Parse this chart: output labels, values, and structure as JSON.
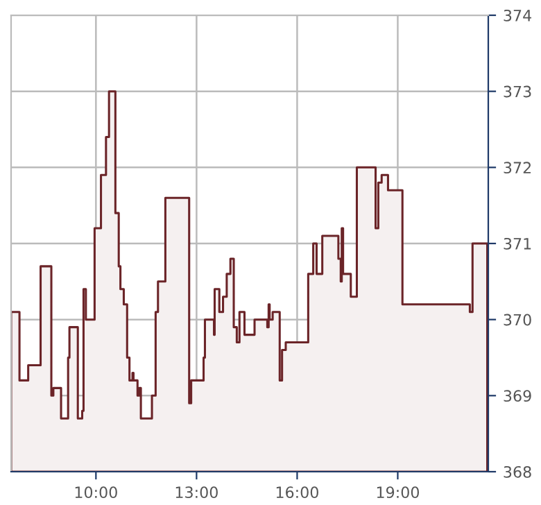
{
  "chart_data": {
    "type": "area",
    "xlim": [
      7.47,
      21.7
    ],
    "xticks": [
      {
        "value": 10,
        "label": "10:00"
      },
      {
        "value": 13,
        "label": "13:00"
      },
      {
        "value": 16,
        "label": "16:00"
      },
      {
        "value": 19,
        "label": "19:00"
      }
    ],
    "ylim": [
      368,
      374
    ],
    "yticks": [
      368,
      369,
      370,
      371,
      372,
      373,
      374
    ],
    "grid": true,
    "legend": false,
    "line_style": "solid",
    "series": [
      {
        "color": "#6b2428",
        "x": [
          7.47,
          7.72,
          7.72,
          7.98,
          7.98,
          8.35,
          8.35,
          8.67,
          8.67,
          8.73,
          8.73,
          8.96,
          8.96,
          9.17,
          9.17,
          9.21,
          9.21,
          9.46,
          9.46,
          9.59,
          9.59,
          9.63,
          9.63,
          9.7,
          9.7,
          9.96,
          9.96,
          10.15,
          10.15,
          10.3,
          10.3,
          10.39,
          10.39,
          10.58,
          10.58,
          10.68,
          10.68,
          10.73,
          10.73,
          10.83,
          10.83,
          10.93,
          10.93,
          11.0,
          11.0,
          11.09,
          11.09,
          11.12,
          11.12,
          11.24,
          11.24,
          11.29,
          11.29,
          11.34,
          11.34,
          11.67,
          11.67,
          11.78,
          11.78,
          11.85,
          11.85,
          12.07,
          12.07,
          12.78,
          12.78,
          12.84,
          12.84,
          13.21,
          13.21,
          13.25,
          13.25,
          13.52,
          13.52,
          13.54,
          13.54,
          13.68,
          13.68,
          13.79,
          13.79,
          13.9,
          13.9,
          14.01,
          14.01,
          14.11,
          14.11,
          14.2,
          14.2,
          14.28,
          14.28,
          14.43,
          14.43,
          14.73,
          14.73,
          15.11,
          15.11,
          15.15,
          15.15,
          15.18,
          15.18,
          15.27,
          15.27,
          15.48,
          15.48,
          15.55,
          15.55,
          15.66,
          15.66,
          16.33,
          16.33,
          16.48,
          16.48,
          16.58,
          16.58,
          16.75,
          16.75,
          17.23,
          17.23,
          17.3,
          17.3,
          17.33,
          17.33,
          17.37,
          17.37,
          17.6,
          17.6,
          17.78,
          17.78,
          18.34,
          18.34,
          18.42,
          18.42,
          18.52,
          18.52,
          18.71,
          18.71,
          19.14,
          19.14,
          21.15,
          21.15,
          21.23,
          21.23,
          21.67
        ],
        "values": [
          370.1,
          370.1,
          369.2,
          369.2,
          369.4,
          369.4,
          370.7,
          370.7,
          369.0,
          369.0,
          369.1,
          369.1,
          368.7,
          368.7,
          369.5,
          369.5,
          369.9,
          369.9,
          368.7,
          368.7,
          368.8,
          368.8,
          370.4,
          370.4,
          370.0,
          370.0,
          371.2,
          371.2,
          371.9,
          371.9,
          372.4,
          372.4,
          373.0,
          373.0,
          371.4,
          371.4,
          370.7,
          370.7,
          370.4,
          370.4,
          370.2,
          370.2,
          369.5,
          369.5,
          369.2,
          369.2,
          369.3,
          369.3,
          369.2,
          369.2,
          369.0,
          369.0,
          369.1,
          369.1,
          368.7,
          368.7,
          369.0,
          369.0,
          370.1,
          370.1,
          370.5,
          370.5,
          371.6,
          371.6,
          368.9,
          368.9,
          369.2,
          369.2,
          369.5,
          369.5,
          370.0,
          370.0,
          369.8,
          369.8,
          370.4,
          370.4,
          370.1,
          370.1,
          370.3,
          370.3,
          370.6,
          370.6,
          370.8,
          370.8,
          369.9,
          369.9,
          369.7,
          369.7,
          370.1,
          370.1,
          369.8,
          369.8,
          370.0,
          370.0,
          369.9,
          369.9,
          370.2,
          370.2,
          370.0,
          370.0,
          370.1,
          370.1,
          369.2,
          369.2,
          369.6,
          369.6,
          369.7,
          369.7,
          370.6,
          370.6,
          371.0,
          371.0,
          370.6,
          370.6,
          371.1,
          371.1,
          370.8,
          370.8,
          370.5,
          370.5,
          371.2,
          371.2,
          370.6,
          370.6,
          370.3,
          370.3,
          372.0,
          372.0,
          371.2,
          371.2,
          371.8,
          371.8,
          371.9,
          371.9,
          371.7,
          371.7,
          370.2,
          370.2,
          370.1,
          370.1,
          371.0,
          371.0
        ]
      }
    ]
  }
}
